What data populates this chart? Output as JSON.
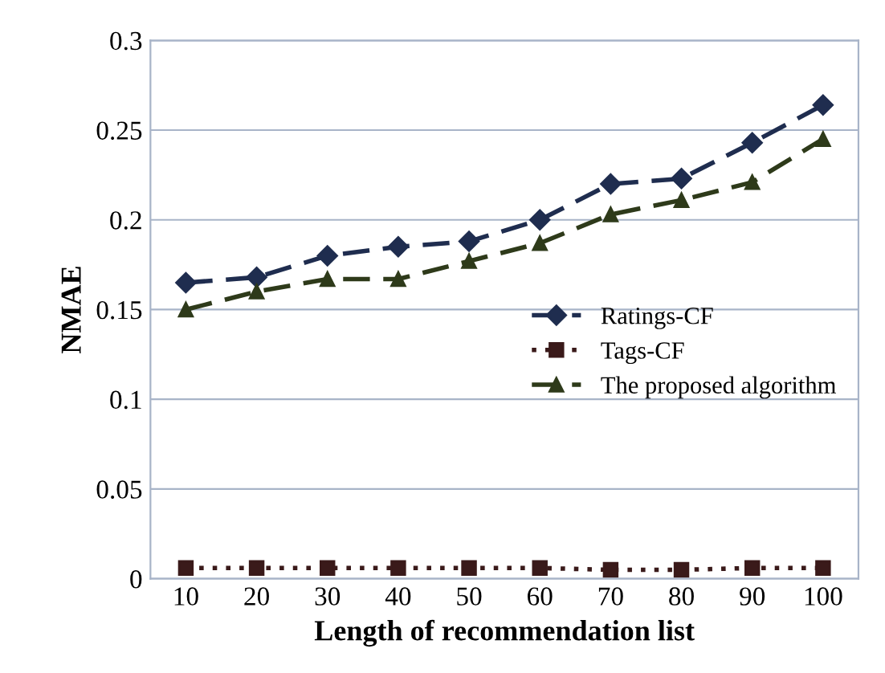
{
  "chart_data": {
    "type": "line",
    "xlabel": "Length of recommendation list",
    "ylabel": "NMAE",
    "categories": [
      "10",
      "20",
      "30",
      "40",
      "50",
      "60",
      "70",
      "80",
      "90",
      "100"
    ],
    "series": [
      {
        "name": "Ratings-CF",
        "color": "#1f2d4f",
        "marker": "diamond",
        "line_style": "dashed",
        "values": [
          0.165,
          0.168,
          0.18,
          0.185,
          0.188,
          0.2,
          0.22,
          0.223,
          0.243,
          0.264
        ]
      },
      {
        "name": "Tags-CF",
        "color": "#3a1a1a",
        "marker": "square",
        "line_style": "dotted",
        "values": [
          0.006,
          0.006,
          0.006,
          0.006,
          0.006,
          0.006,
          0.005,
          0.005,
          0.006,
          0.006
        ]
      },
      {
        "name": "The proposed algorithm",
        "color": "#2e3a1a",
        "marker": "triangle",
        "line_style": "dashed",
        "values": [
          0.15,
          0.16,
          0.167,
          0.167,
          0.177,
          0.187,
          0.203,
          0.211,
          0.221,
          0.245
        ]
      }
    ],
    "ylim": [
      0,
      0.3
    ],
    "yticks": [
      0,
      0.05,
      0.1,
      0.15,
      0.2,
      0.25,
      0.3
    ],
    "grid": "y",
    "legend": "right"
  }
}
